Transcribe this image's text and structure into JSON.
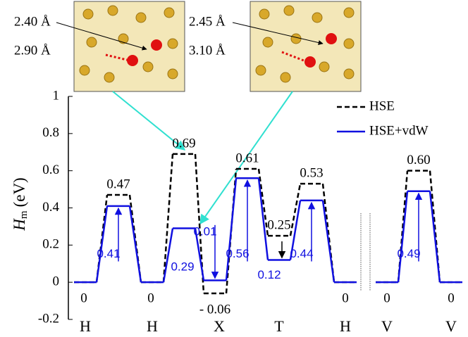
{
  "chart_data": {
    "type": "energy-profile",
    "ylabel": {
      "main": "H",
      "sub": "m",
      "unit": "(eV)"
    },
    "categories": [
      "H",
      null,
      "H",
      null,
      "X",
      null,
      "T",
      null,
      "H",
      "V",
      null,
      "V"
    ],
    "series": [
      {
        "name": "HSE",
        "color": "#000000",
        "dash": true,
        "values": [
          0,
          0.47,
          0,
          0.69,
          -0.06,
          0.61,
          0.25,
          0.53,
          0,
          0,
          0.6,
          0
        ],
        "value_labels": [
          "0",
          "0.47",
          "0",
          "0.69",
          "- 0.06",
          "0.61",
          "0.25",
          "0.53",
          "0",
          "0",
          "0.60",
          "0"
        ]
      },
      {
        "name": "HSE+vdW",
        "color": "#1010e0",
        "dash": false,
        "values": [
          0,
          0.41,
          0,
          0.29,
          0.01,
          0.56,
          0.12,
          0.44,
          0,
          0,
          0.49,
          0
        ],
        "value_labels": [
          null,
          "0.41",
          null,
          "0.29",
          "0.01",
          "0.56",
          "0.12",
          "0.44",
          null,
          null,
          "0.49",
          null
        ]
      }
    ],
    "ylim": [
      -0.2,
      1
    ],
    "yticks": [
      -0.2,
      0,
      0.2,
      0.4,
      0.6,
      0.8,
      1
    ],
    "legend": "upper right",
    "insets": [
      {
        "labels": [
          "2.40 Å",
          "2.90 Å"
        ]
      },
      {
        "labels": [
          "2.45 Å",
          "3.10 Å"
        ]
      }
    ]
  }
}
